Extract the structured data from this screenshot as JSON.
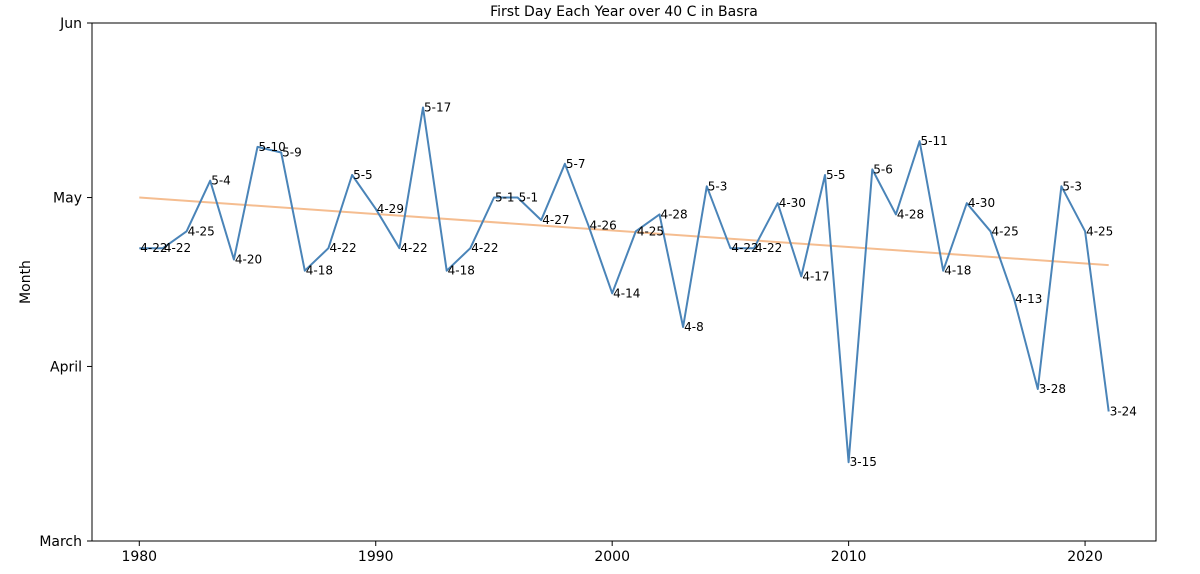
{
  "chart_data": {
    "type": "line",
    "title": "First Day Each Year over 40 C in Basra",
    "xlabel": "",
    "ylabel": "Month",
    "xlim": [
      1978,
      2023
    ],
    "ylim": [
      "03-01",
      "06-01"
    ],
    "xticks": [
      1980,
      1990,
      2000,
      2010,
      2020
    ],
    "yticks": [
      {
        "date": "03-01",
        "label": "March"
      },
      {
        "date": "04-01",
        "label": "April"
      },
      {
        "date": "05-01",
        "label": "May"
      },
      {
        "date": "06-01",
        "label": "Jun"
      }
    ],
    "grid": false,
    "series": [
      {
        "color": "#4a84b8",
        "x": [
          1980,
          1981,
          1982,
          1983,
          1984,
          1985,
          1986,
          1987,
          1988,
          1989,
          1990,
          1991,
          1992,
          1993,
          1994,
          1995,
          1996,
          1997,
          1998,
          1999,
          2000,
          2001,
          2002,
          2003,
          2004,
          2005,
          2006,
          2007,
          2008,
          2009,
          2010,
          2011,
          2012,
          2013,
          2014,
          2015,
          2016,
          2017,
          2018,
          2019,
          2020,
          2021
        ],
        "dates": [
          "04-22",
          "04-22",
          "04-25",
          "05-04",
          "04-20",
          "05-10",
          "05-09",
          "04-18",
          "04-22",
          "05-05",
          "04-29",
          "04-22",
          "05-17",
          "04-18",
          "04-22",
          "05-01",
          "05-01",
          "04-27",
          "05-07",
          "04-26",
          "04-14",
          "04-25",
          "04-28",
          "04-08",
          "05-03",
          "04-22",
          "04-22",
          "04-30",
          "04-17",
          "05-05",
          "03-15",
          "05-06",
          "04-28",
          "05-11",
          "04-18",
          "04-30",
          "04-25",
          "04-13",
          "03-28",
          "05-03",
          "04-25",
          "03-24"
        ],
        "labels": [
          "4-22",
          "4-22",
          "4-25",
          "5-4",
          "4-20",
          "5-10",
          "5-9",
          "4-18",
          "4-22",
          "5-5",
          "4-29",
          "4-22",
          "5-17",
          "4-18",
          "4-22",
          "5-1",
          "5-1",
          "4-27",
          "5-7",
          "4-26",
          "4-14",
          "4-25",
          "4-28",
          "4-8",
          "5-3",
          "4-22",
          "4-22",
          "4-30",
          "4-17",
          "5-5",
          "3-15",
          "5-6",
          "4-28",
          "5-11",
          "4-18",
          "4-30",
          "4-25",
          "4-13",
          "3-28",
          "5-3",
          "4-25",
          "3-24"
        ]
      },
      {
        "color": "#f5bd90",
        "x": [
          1980,
          2021
        ],
        "dates": [
          "05-01",
          "04-19"
        ]
      }
    ],
    "colors": {
      "series": "#4a84b8",
      "trend": "#f5bd90",
      "axes": "#000000"
    }
  }
}
